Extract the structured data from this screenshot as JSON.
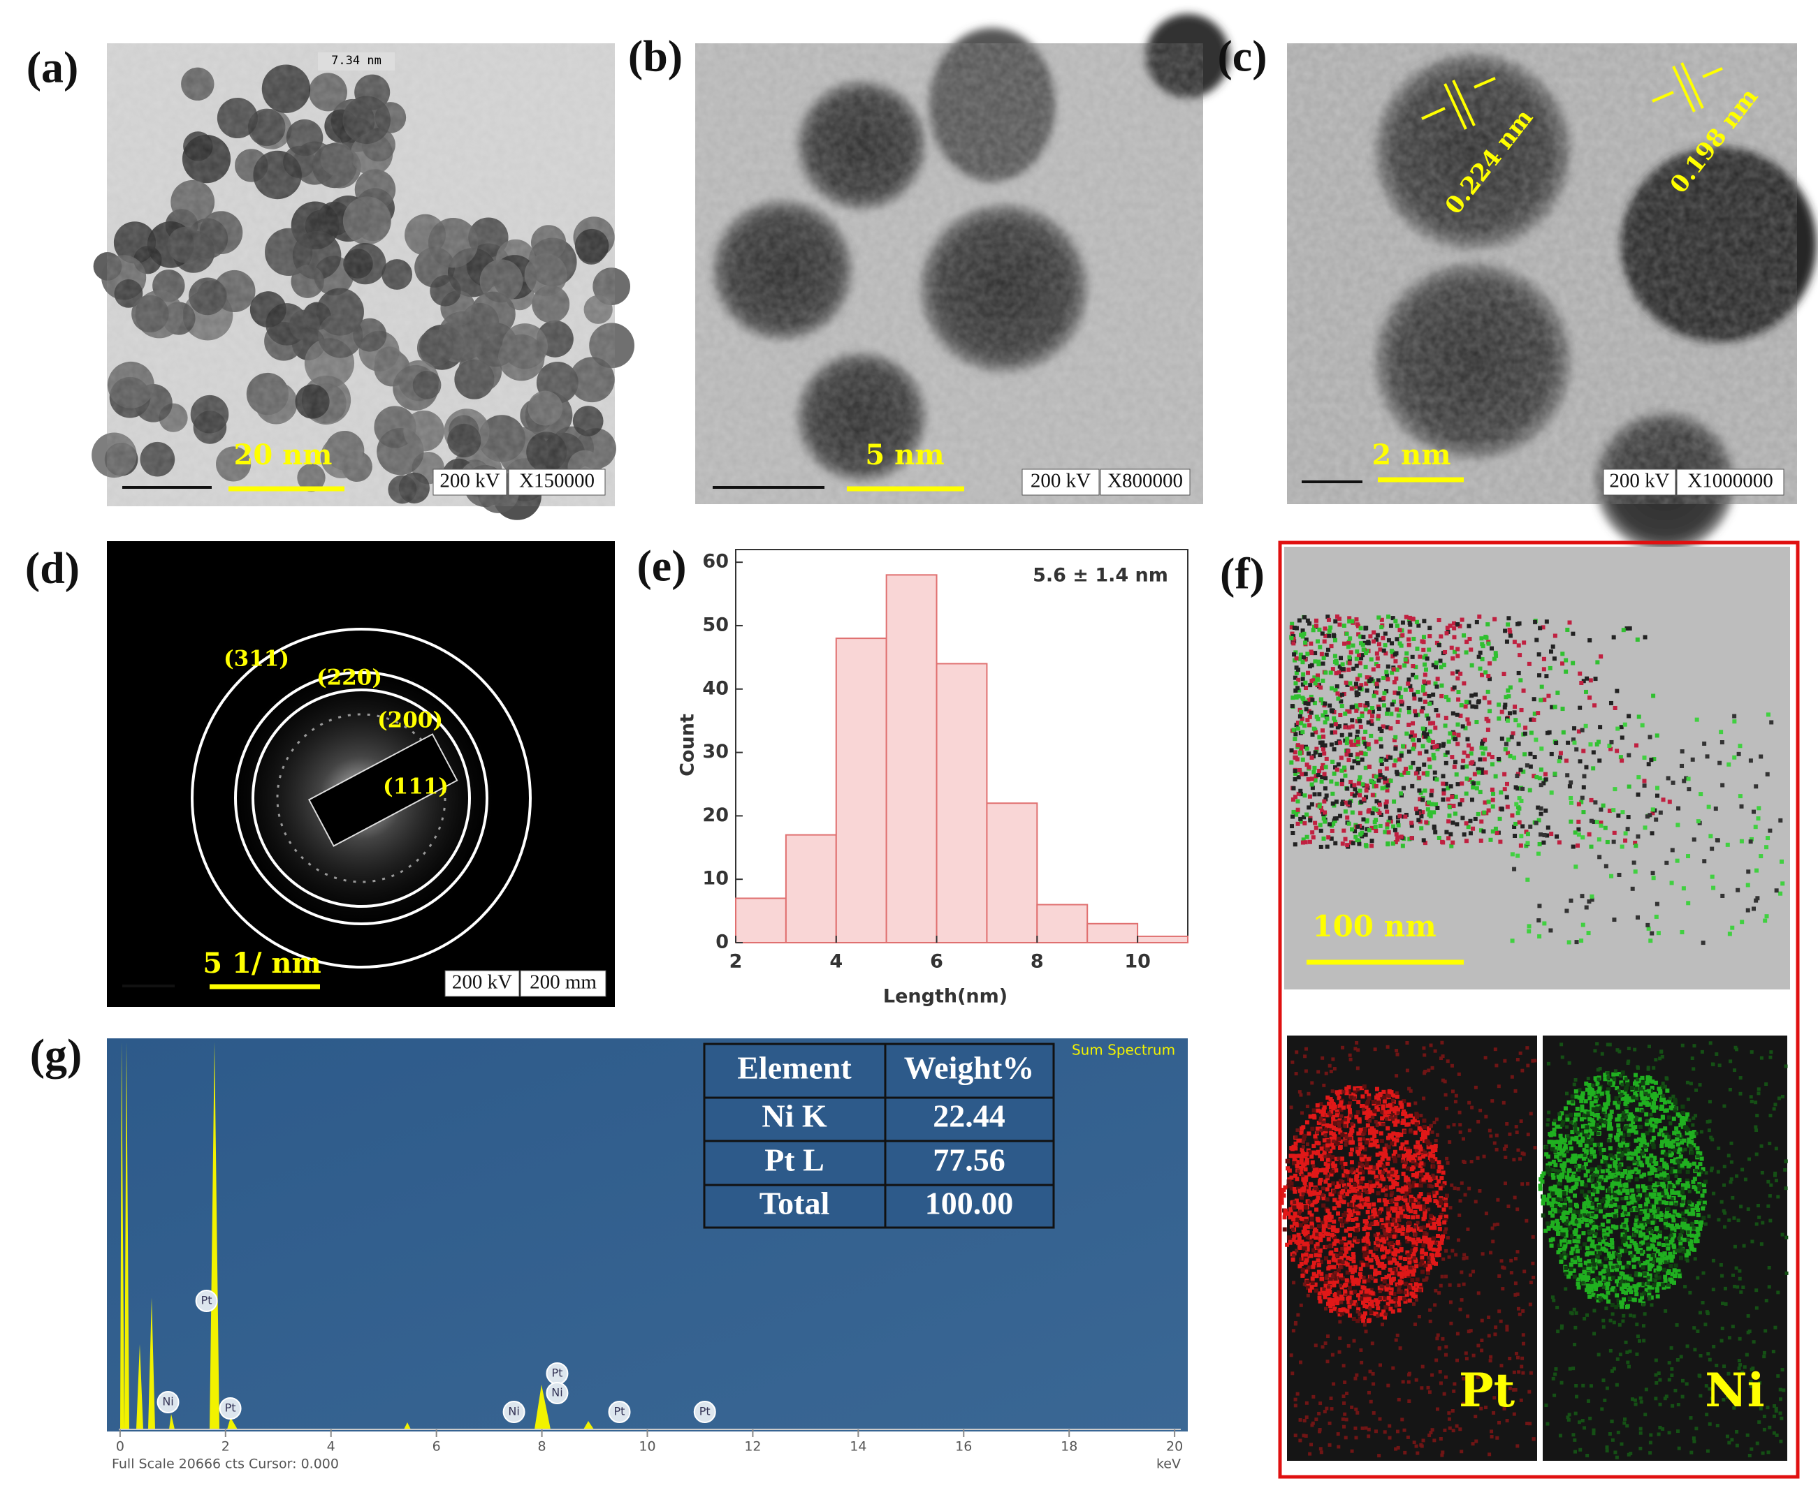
{
  "panels": {
    "a": {
      "label": "(a)",
      "scale_bar": "20 nm",
      "kv": "200 kV",
      "mag": "X150000",
      "measure": "7.34 nm"
    },
    "b": {
      "label": "(b)",
      "scale_bar": "5 nm",
      "kv": "200 kV",
      "mag": "X800000"
    },
    "c": {
      "label": "(c)",
      "scale_bar": "2 nm",
      "kv": "200 kV",
      "mag": "X1000000",
      "d_spacings": [
        "0.224 nm",
        "0.198 nm"
      ]
    },
    "d": {
      "label": "(d)",
      "scale_bar": "5 1/ nm",
      "kv": "200 kV",
      "camera": "200 mm",
      "rings": [
        "(311)",
        "(220)",
        "(200)",
        "(111)"
      ]
    },
    "e": {
      "label": "(e)"
    },
    "f": {
      "label": "(f)",
      "scale_bar": "100 nm",
      "maps": [
        "Pt",
        "Ni"
      ]
    },
    "g": {
      "label": "(g)",
      "table": {
        "header": [
          "Element",
          "Weight%"
        ],
        "rows": [
          [
            "Ni K",
            "22.44"
          ],
          [
            "Pt L",
            "77.56"
          ],
          [
            "Total",
            "100.00"
          ]
        ]
      }
    }
  },
  "chart_data": [
    {
      "type": "histogram",
      "annotation": "5.6 ± 1.4 nm",
      "x_label": "Length(nm)",
      "y_label": "Count",
      "bins": [
        2,
        3,
        4,
        5,
        6,
        7,
        8,
        9,
        10,
        11
      ],
      "values": [
        7,
        17,
        48,
        58,
        44,
        22,
        6,
        3,
        1
      ],
      "color": "#f9d6d6",
      "edge_color": "#e07070",
      "xlim": [
        2,
        11
      ],
      "ylim": [
        0,
        62
      ],
      "xticks": [
        2,
        4,
        6,
        8,
        10
      ],
      "yticks": [
        0,
        10,
        20,
        30,
        40,
        50,
        60
      ]
    },
    {
      "type": "spectrum",
      "legend": "Sum Spectrum",
      "x_label": "keV",
      "footer": "Full Scale 20666 cts Cursor: 0.000",
      "xlim": [
        -0.25,
        20.25
      ],
      "xticks": [
        0,
        2,
        4,
        6,
        8,
        10,
        12,
        14,
        16,
        18,
        20
      ],
      "color": "#f2f200",
      "peak_labels": [
        {
          "label": "Pt",
          "x": 1.64
        },
        {
          "label": "Ni",
          "x": 0.91
        },
        {
          "label": "Pt",
          "x": 2.09
        },
        {
          "label": "Ni",
          "x": 7.47
        },
        {
          "label": "Pt",
          "x": 8.29
        },
        {
          "label": "Ni",
          "x": 8.29
        },
        {
          "label": "Pt",
          "x": 9.47
        },
        {
          "label": "Pt",
          "x": 11.09
        }
      ]
    }
  ]
}
